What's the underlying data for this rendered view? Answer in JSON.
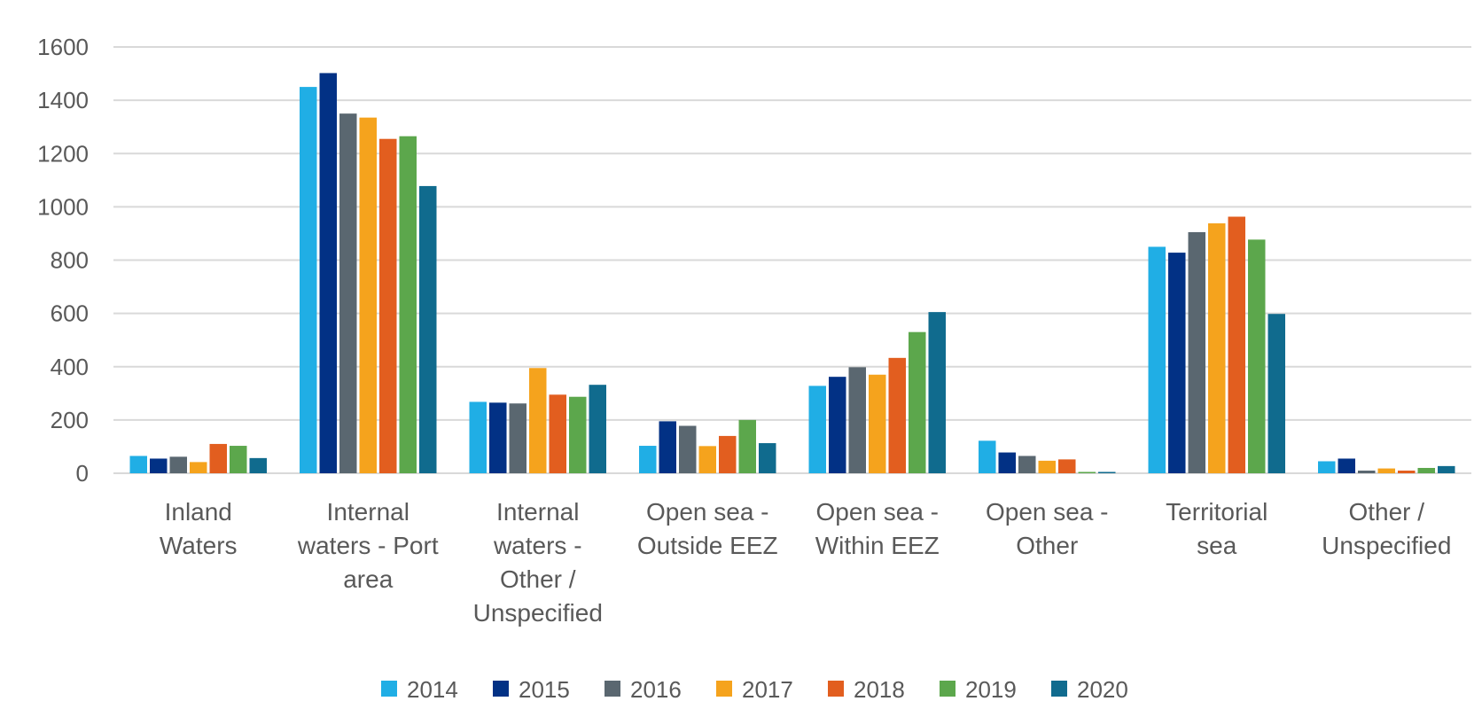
{
  "chart_data": {
    "type": "bar",
    "title": "",
    "xlabel": "",
    "ylabel": "",
    "ylim": [
      0,
      1600
    ],
    "yticks": [
      "0",
      "200",
      "400",
      "600",
      "800",
      "1000",
      "1200",
      "1400",
      "1600"
    ],
    "grid": true,
    "legend_position": "bottom",
    "categories": [
      [
        "Inland",
        "Waters"
      ],
      [
        "Internal",
        "waters - Port",
        "area"
      ],
      [
        "Internal",
        "waters -",
        "Other /",
        "Unspecified"
      ],
      [
        "Open sea -",
        "Outside EEZ"
      ],
      [
        "Open sea -",
        "Within EEZ"
      ],
      [
        "Open sea -",
        "Other"
      ],
      [
        "Territorial",
        "sea"
      ],
      [
        "Other /",
        "Unspecified"
      ]
    ],
    "series": [
      {
        "name": "2014",
        "color": "#20AEE5",
        "values": [
          65,
          1450,
          268,
          103,
          328,
          122,
          850,
          45
        ]
      },
      {
        "name": "2015",
        "color": "#023185",
        "values": [
          55,
          1502,
          265,
          195,
          362,
          78,
          828,
          55
        ]
      },
      {
        "name": "2016",
        "color": "#5A6770",
        "values": [
          62,
          1350,
          262,
          178,
          398,
          65,
          905,
          10
        ]
      },
      {
        "name": "2017",
        "color": "#F5A31D",
        "values": [
          42,
          1335,
          395,
          102,
          370,
          47,
          938,
          18
        ]
      },
      {
        "name": "2018",
        "color": "#E25E1F",
        "values": [
          110,
          1255,
          295,
          140,
          433,
          52,
          963,
          10
        ]
      },
      {
        "name": "2019",
        "color": "#5CA74C",
        "values": [
          103,
          1265,
          287,
          200,
          530,
          5,
          877,
          20
        ]
      },
      {
        "name": "2020",
        "color": "#106B8E",
        "values": [
          57,
          1078,
          332,
          113,
          605,
          5,
          598,
          27
        ]
      }
    ]
  }
}
